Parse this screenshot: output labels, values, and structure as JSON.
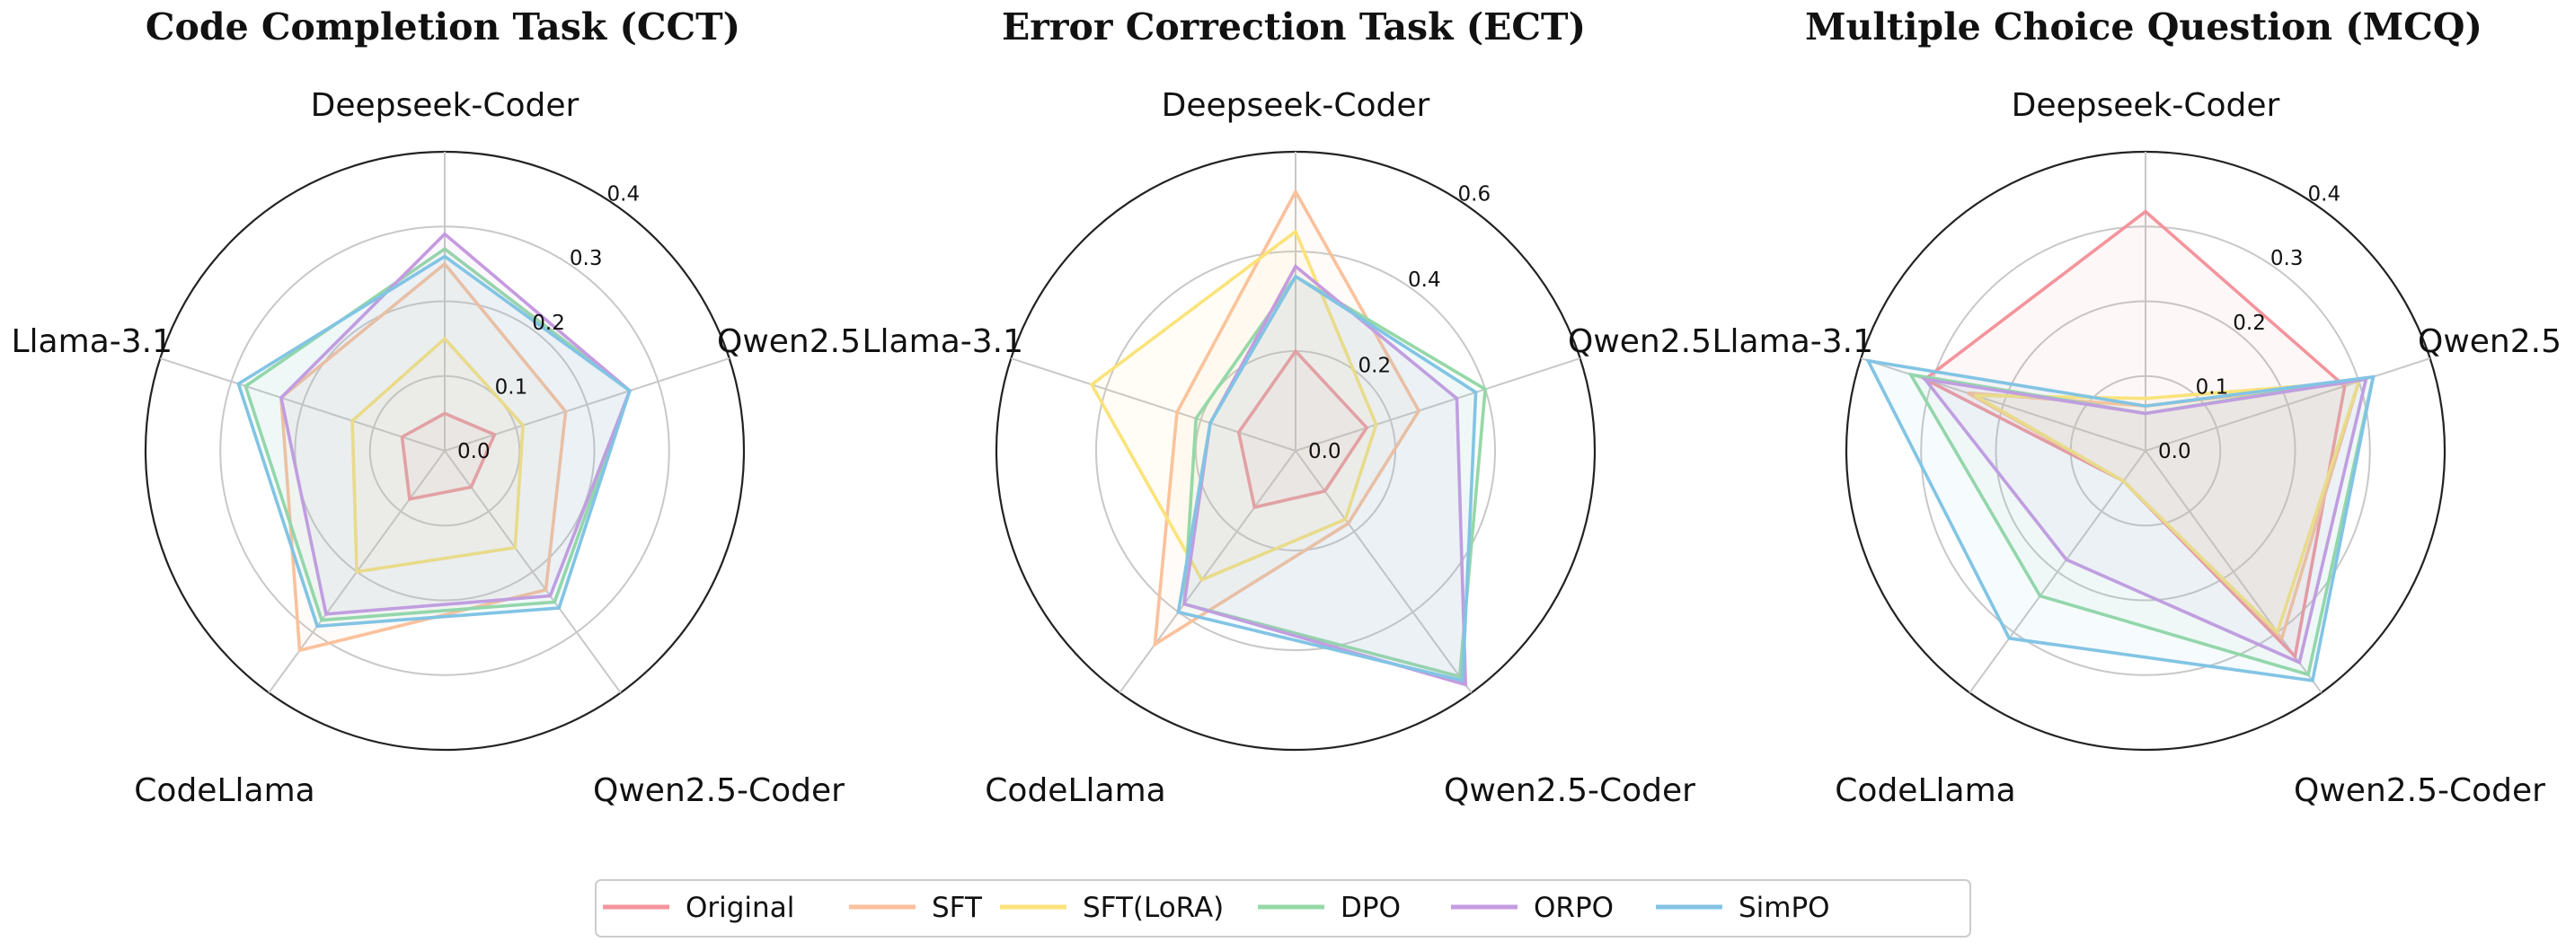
{
  "chart_data": [
    {
      "type": "radar",
      "title": "Code Completion Task (CCT)",
      "axes": [
        "Deepseek-Coder",
        "Qwen2.5",
        "Qwen2.5-Coder",
        "CodeLlama",
        "Llama-3.1"
      ],
      "rmax": 0.4,
      "ticks": [
        "0.0",
        "0.1",
        "0.2",
        "0.3",
        "0.4"
      ],
      "series": [
        {
          "name": "Original",
          "values": [
            0.05,
            0.07,
            0.06,
            0.08,
            0.06
          ]
        },
        {
          "name": "SFT",
          "values": [
            0.25,
            0.17,
            0.23,
            0.33,
            0.23
          ]
        },
        {
          "name": "SFT(LoRA)",
          "values": [
            0.15,
            0.11,
            0.16,
            0.2,
            0.13
          ]
        },
        {
          "name": "DPO",
          "values": [
            0.27,
            0.26,
            0.25,
            0.28,
            0.28
          ]
        },
        {
          "name": "ORPO",
          "values": [
            0.29,
            0.26,
            0.24,
            0.27,
            0.23
          ]
        },
        {
          "name": "SimPO",
          "values": [
            0.26,
            0.26,
            0.26,
            0.29,
            0.29
          ]
        }
      ]
    },
    {
      "type": "radar",
      "title": "Error Correction Task (ECT)",
      "axes": [
        "Deepseek-Coder",
        "Qwen2.5",
        "Qwen2.5-Coder",
        "CodeLlama",
        "Llama-3.1"
      ],
      "rmax": 0.6,
      "ticks": [
        "0.0",
        "0.2",
        "0.4",
        "0.6"
      ],
      "series": [
        {
          "name": "Original",
          "values": [
            0.2,
            0.15,
            0.1,
            0.14,
            0.12
          ]
        },
        {
          "name": "SFT",
          "values": [
            0.52,
            0.26,
            0.18,
            0.48,
            0.25
          ]
        },
        {
          "name": "SFT(LoRA)",
          "values": [
            0.44,
            0.17,
            0.17,
            0.32,
            0.43
          ]
        },
        {
          "name": "DPO",
          "values": [
            0.35,
            0.4,
            0.56,
            0.38,
            0.21
          ]
        },
        {
          "name": "ORPO",
          "values": [
            0.37,
            0.34,
            0.58,
            0.38,
            0.18
          ]
        },
        {
          "name": "SimPO",
          "values": [
            0.35,
            0.38,
            0.57,
            0.4,
            0.18
          ]
        }
      ]
    },
    {
      "type": "radar",
      "title": "Multiple Choice Question (MCQ)",
      "axes": [
        "Deepseek-Coder",
        "Qwen2.5",
        "Qwen2.5-Coder",
        "CodeLlama",
        "Llama-3.1"
      ],
      "rmax": 0.4,
      "ticks": [
        "0.0",
        "0.1",
        "0.2",
        "0.3",
        "0.4"
      ],
      "series": [
        {
          "name": "Original",
          "values": [
            0.32,
            0.28,
            0.34,
            0.05,
            0.31
          ]
        },
        {
          "name": "SFT",
          "values": [
            0.06,
            0.3,
            0.31,
            0.05,
            0.25
          ]
        },
        {
          "name": "SFT(LoRA)",
          "values": [
            0.07,
            0.3,
            0.3,
            0.05,
            0.24
          ]
        },
        {
          "name": "DPO",
          "values": [
            0.05,
            0.32,
            0.37,
            0.24,
            0.33
          ]
        },
        {
          "name": "ORPO",
          "values": [
            0.05,
            0.31,
            0.35,
            0.18,
            0.31
          ]
        },
        {
          "name": "SimPO",
          "values": [
            0.06,
            0.32,
            0.38,
            0.31,
            0.39
          ]
        }
      ]
    }
  ],
  "legend": {
    "entries": [
      "Original",
      "SFT",
      "SFT(LoRA)",
      "DPO",
      "ORPO",
      "SimPO"
    ],
    "placement": "bottom-center"
  },
  "colors": {
    "Original": "#f4949c",
    "SFT": "#fbc19c",
    "SFT(LoRA)": "#fbe37a",
    "DPO": "#95d8a7",
    "ORPO": "#c59be0",
    "SimPO": "#82c4e4"
  }
}
